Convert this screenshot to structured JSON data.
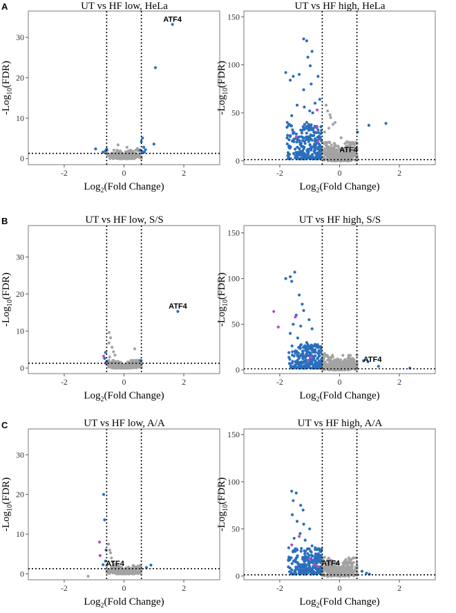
{
  "panel_letters": [
    "A",
    "B",
    "C"
  ],
  "axis_text": {
    "xlabel_main": "Log",
    "xlabel_sub": "2",
    "xlabel_rest": "(Fold Change)",
    "ylabel_main": "-Log",
    "ylabel_sub": "10",
    "ylabel_rest": "(FDR)"
  },
  "colors": {
    "sig": "#2a6fbd",
    "nonsig": "#a3a3a3",
    "highlight": "#b54fc2"
  },
  "chart_data": [
    {
      "id": "a-low",
      "type": "scatter",
      "title": "UT vs HF low, HeLa",
      "xlim": [
        -3.2,
        3.2
      ],
      "ylim": [
        -1.5,
        36.5
      ],
      "xticks": [
        -2,
        0,
        2
      ],
      "yticks": [
        0,
        10,
        20,
        30
      ],
      "thresholds": {
        "x": [
          -0.58,
          0.58
        ],
        "y": 1.3
      },
      "label": {
        "text": "ATF4",
        "x": 1.62,
        "y": 33.2
      },
      "sig_points": [
        [
          1.62,
          33.2
        ],
        [
          1.05,
          22.5
        ],
        [
          1.0,
          3.6
        ],
        [
          0.62,
          5.1
        ],
        [
          0.58,
          4.2
        ],
        [
          0.66,
          2.8
        ],
        [
          0.72,
          2.2
        ],
        [
          0.6,
          1.8
        ],
        [
          0.68,
          1.6
        ],
        [
          -0.95,
          2.4
        ],
        [
          -0.7,
          1.6
        ],
        [
          -0.62,
          1.9
        ],
        [
          -0.58,
          2.4
        ],
        [
          0.54,
          2.1
        ]
      ],
      "nonsig_points": [
        [
          -0.2,
          3.4
        ],
        [
          0.1,
          2.8
        ],
        [
          0.3,
          1.8
        ],
        [
          0.45,
          2.5
        ],
        [
          -0.4,
          1.2
        ],
        [
          0.15,
          1.9
        ],
        [
          -0.1,
          1.4
        ],
        [
          0.25,
          1.1
        ],
        [
          -0.3,
          0.9
        ],
        [
          0.05,
          0.6
        ]
      ],
      "highlight_points": [],
      "nonsig_cloud": {
        "xmin": -0.58,
        "xmax": 0.58,
        "ymax": 1.3,
        "count": 450,
        "sd": 0.22
      }
    },
    {
      "id": "a-high",
      "type": "scatter",
      "title": "UT vs HF high, HeLa",
      "xlim": [
        -3.2,
        3.2
      ],
      "ylim": [
        -4,
        156
      ],
      "xticks": [
        -2,
        0,
        2
      ],
      "yticks": [
        0,
        50,
        100,
        150
      ],
      "thresholds": {
        "x": [
          -0.58,
          0.58
        ],
        "y": 1.3
      },
      "label": {
        "text": "ATF4",
        "x": 0.3,
        "y": 6
      },
      "sig_points": [
        [
          -1.2,
          127
        ],
        [
          -1.1,
          125
        ],
        [
          -0.98,
          99
        ],
        [
          -1.06,
          108
        ],
        [
          -0.92,
          114
        ],
        [
          -0.72,
          88
        ],
        [
          -1.8,
          92
        ],
        [
          -1.55,
          88
        ],
        [
          -1.35,
          90
        ],
        [
          -1.65,
          84
        ],
        [
          -1.2,
          74
        ],
        [
          -0.95,
          80
        ],
        [
          -0.82,
          60
        ],
        [
          -1.42,
          58
        ],
        [
          -1.75,
          40
        ],
        [
          -1.6,
          47
        ],
        [
          -0.9,
          50
        ],
        [
          1.55,
          39
        ],
        [
          0.98,
          37
        ],
        [
          0.6,
          30
        ],
        [
          -1.3,
          32
        ],
        [
          -1.1,
          40
        ],
        [
          -0.86,
          30
        ],
        [
          -1.0,
          52
        ],
        [
          -1.18,
          56
        ],
        [
          -0.66,
          64
        ],
        [
          -1.55,
          30
        ],
        [
          -1.4,
          22
        ]
      ],
      "nonsig_points": [
        [
          -0.45,
          58
        ],
        [
          -0.4,
          52
        ],
        [
          -0.32,
          48
        ],
        [
          -0.3,
          45
        ],
        [
          -0.15,
          40
        ],
        [
          -0.22,
          38
        ],
        [
          0.05,
          24
        ],
        [
          0.18,
          18
        ],
        [
          0.3,
          15
        ],
        [
          0.12,
          12
        ],
        [
          0.4,
          8
        ],
        [
          -0.5,
          30
        ],
        [
          -0.36,
          34
        ],
        [
          0.25,
          20
        ]
      ],
      "highlight_points": [
        [
          -1.45,
          25
        ],
        [
          -0.72,
          20
        ],
        [
          -0.75,
          53
        ],
        [
          -0.75,
          35
        ]
      ],
      "sig_cloud": {
        "xmin": -1.8,
        "xmax": -0.6,
        "ymin": 2,
        "ymax": 38,
        "count": 230
      },
      "nonsig_cloud": {
        "xmin": -0.58,
        "xmax": 0.58,
        "ymax": 12,
        "count": 500,
        "sd": 0.3
      }
    },
    {
      "id": "b-low",
      "type": "scatter",
      "title": "UT vs HF low, S/S",
      "xlim": [
        -3.2,
        3.2
      ],
      "ylim": [
        -1.5,
        38.5
      ],
      "xticks": [
        -2,
        0,
        2
      ],
      "yticks": [
        0,
        10,
        20,
        30
      ],
      "thresholds": {
        "x": [
          -0.58,
          0.58
        ],
        "y": 1.3
      },
      "label": {
        "text": "ATF4",
        "x": 1.8,
        "y": 15.3
      },
      "sig_points": [
        [
          1.8,
          15.3
        ],
        [
          -0.62,
          4.2
        ],
        [
          -0.65,
          2.6
        ],
        [
          -0.58,
          1.8
        ],
        [
          -0.6,
          1.5
        ],
        [
          0.55,
          2.0
        ]
      ],
      "nonsig_points": [
        [
          -0.5,
          9.6
        ],
        [
          -0.45,
          8.2
        ],
        [
          -0.5,
          6.8
        ],
        [
          -0.4,
          5.6
        ],
        [
          -0.35,
          4.4
        ],
        [
          -0.3,
          3.5
        ],
        [
          -0.48,
          3.0
        ],
        [
          0.36,
          5.2
        ],
        [
          0.2,
          1.6
        ],
        [
          0.1,
          1.2
        ],
        [
          -0.2,
          1.8
        ]
      ],
      "highlight_points": [
        [
          -0.68,
          3.2
        ],
        [
          -0.6,
          1.2
        ]
      ],
      "nonsig_cloud": {
        "xmin": -0.58,
        "xmax": 0.58,
        "ymax": 1.3,
        "count": 450,
        "sd": 0.24
      }
    },
    {
      "id": "b-high",
      "type": "scatter",
      "title": "UT vs HF high, S/S",
      "xlim": [
        -3.2,
        3.2
      ],
      "ylim": [
        -4,
        158
      ],
      "xticks": [
        -2,
        0,
        2
      ],
      "yticks": [
        0,
        50,
        100,
        150
      ],
      "thresholds": {
        "x": [
          -0.58,
          0.58
        ],
        "y": 1.3
      },
      "label": {
        "text": "ATF4",
        "x": 1.1,
        "y": 6
      },
      "sig_points": [
        [
          -1.5,
          107
        ],
        [
          -1.6,
          97
        ],
        [
          -1.8,
          100
        ],
        [
          -1.65,
          102
        ],
        [
          -1.35,
          82
        ],
        [
          -1.25,
          72
        ],
        [
          -1.45,
          60
        ],
        [
          -1.2,
          65
        ],
        [
          -1.02,
          55
        ],
        [
          -0.92,
          45
        ],
        [
          -1.65,
          40
        ],
        [
          -1.4,
          35
        ],
        [
          -1.1,
          30
        ],
        [
          -0.82,
          28
        ],
        [
          0.8,
          10
        ],
        [
          0.95,
          9
        ],
        [
          1.3,
          4
        ],
        [
          2.35,
          2
        ],
        [
          -1.55,
          50
        ],
        [
          -1.3,
          48
        ]
      ],
      "nonsig_points": [
        [
          -0.5,
          18
        ],
        [
          -0.4,
          15
        ],
        [
          -0.3,
          12
        ],
        [
          -0.15,
          9
        ],
        [
          0.1,
          6
        ],
        [
          0.3,
          4
        ],
        [
          0.45,
          3
        ]
      ],
      "highlight_points": [
        [
          -2.2,
          64
        ],
        [
          -2.05,
          47
        ],
        [
          -1.48,
          58
        ],
        [
          -0.95,
          14
        ],
        [
          -1.05,
          10
        ]
      ],
      "sig_cloud": {
        "xmin": -1.7,
        "xmax": -0.6,
        "ymin": 2,
        "ymax": 28,
        "count": 240
      },
      "nonsig_cloud": {
        "xmin": -0.58,
        "xmax": 0.58,
        "ymax": 10,
        "count": 500,
        "sd": 0.3
      }
    },
    {
      "id": "c-low",
      "type": "scatter",
      "title": "UT vs HF low, A/A",
      "xlim": [
        -3.2,
        3.2
      ],
      "ylim": [
        -1.5,
        36.5
      ],
      "xticks": [
        -2,
        0,
        2
      ],
      "yticks": [
        0,
        10,
        20,
        30
      ],
      "thresholds": {
        "x": [
          -0.58,
          0.58
        ],
        "y": 1.3
      },
      "label": {
        "text": "ATF4",
        "x": -0.3,
        "y": 1.3
      },
      "sig_points": [
        [
          -0.68,
          20
        ],
        [
          -0.65,
          13.6
        ],
        [
          -0.6,
          6.0
        ],
        [
          -0.62,
          3.2
        ],
        [
          -0.7,
          2.3
        ],
        [
          0.9,
          2.2
        ],
        [
          0.75,
          1.6
        ]
      ],
      "nonsig_points": [
        [
          -0.52,
          7.5
        ],
        [
          -0.48,
          6.0
        ],
        [
          -0.45,
          5.3
        ],
        [
          -0.42,
          4.0
        ],
        [
          -0.38,
          3.0
        ],
        [
          -0.3,
          2.4
        ],
        [
          -0.2,
          2.0
        ],
        [
          0.1,
          1.5
        ],
        [
          0.3,
          1.2
        ],
        [
          -1.2,
          -0.6
        ]
      ],
      "highlight_points": [
        [
          -0.82,
          8.0
        ],
        [
          -0.8,
          4.6
        ]
      ],
      "nonsig_cloud": {
        "xmin": -0.58,
        "xmax": 0.58,
        "ymax": 1.3,
        "count": 450,
        "sd": 0.24
      }
    },
    {
      "id": "c-high",
      "type": "scatter",
      "title": "UT vs HF high, A/A",
      "xlim": [
        -3.2,
        3.2
      ],
      "ylim": [
        -4,
        156
      ],
      "xticks": [
        -2,
        0,
        2
      ],
      "yticks": [
        0,
        50,
        100,
        150
      ],
      "thresholds": {
        "x": [
          -0.58,
          0.58
        ],
        "y": 1.3
      },
      "label": {
        "text": "ATF4",
        "x": -0.3,
        "y": 8
      },
      "sig_points": [
        [
          -1.6,
          90
        ],
        [
          -1.45,
          88
        ],
        [
          -1.55,
          80
        ],
        [
          -1.3,
          75
        ],
        [
          -1.22,
          70
        ],
        [
          -1.58,
          65
        ],
        [
          -1.42,
          58
        ],
        [
          -1.2,
          55
        ],
        [
          -1.0,
          50
        ],
        [
          -1.32,
          45
        ],
        [
          -1.52,
          40
        ],
        [
          -1.15,
          38
        ],
        [
          -0.92,
          32
        ],
        [
          -0.75,
          28
        ],
        [
          0.75,
          5
        ],
        [
          0.9,
          3
        ],
        [
          1.0,
          2
        ],
        [
          -1.7,
          30
        ]
      ],
      "nonsig_points": [
        [
          -0.5,
          20
        ],
        [
          -0.4,
          17
        ],
        [
          -0.3,
          14
        ],
        [
          -0.15,
          10
        ],
        [
          0.1,
          7
        ],
        [
          0.3,
          5
        ]
      ],
      "highlight_points": [
        [
          -1.6,
          33
        ],
        [
          -1.35,
          42
        ],
        [
          -1.0,
          18
        ],
        [
          -0.85,
          12
        ],
        [
          -0.72,
          10
        ]
      ],
      "sig_cloud": {
        "xmin": -1.75,
        "xmax": -0.6,
        "ymin": 2,
        "ymax": 30,
        "count": 230
      },
      "nonsig_cloud": {
        "xmin": -0.58,
        "xmax": 0.58,
        "ymax": 12,
        "count": 500,
        "sd": 0.3
      }
    }
  ]
}
